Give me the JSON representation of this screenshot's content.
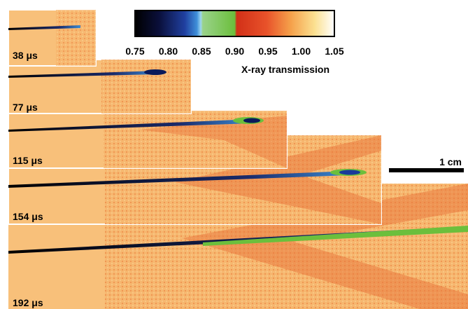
{
  "colorbar": {
    "ticks": [
      "0.75",
      "0.80",
      "0.85",
      "0.90",
      "0.95",
      "1.00",
      "1.05"
    ],
    "label": "X-ray transmission"
  },
  "panels": [
    {
      "label": "38 μs"
    },
    {
      "label": "77 μs"
    },
    {
      "label": "115 μs"
    },
    {
      "label": "154 μs"
    },
    {
      "label": "192 μs"
    }
  ],
  "scale_bar": {
    "label": "1 cm"
  }
}
